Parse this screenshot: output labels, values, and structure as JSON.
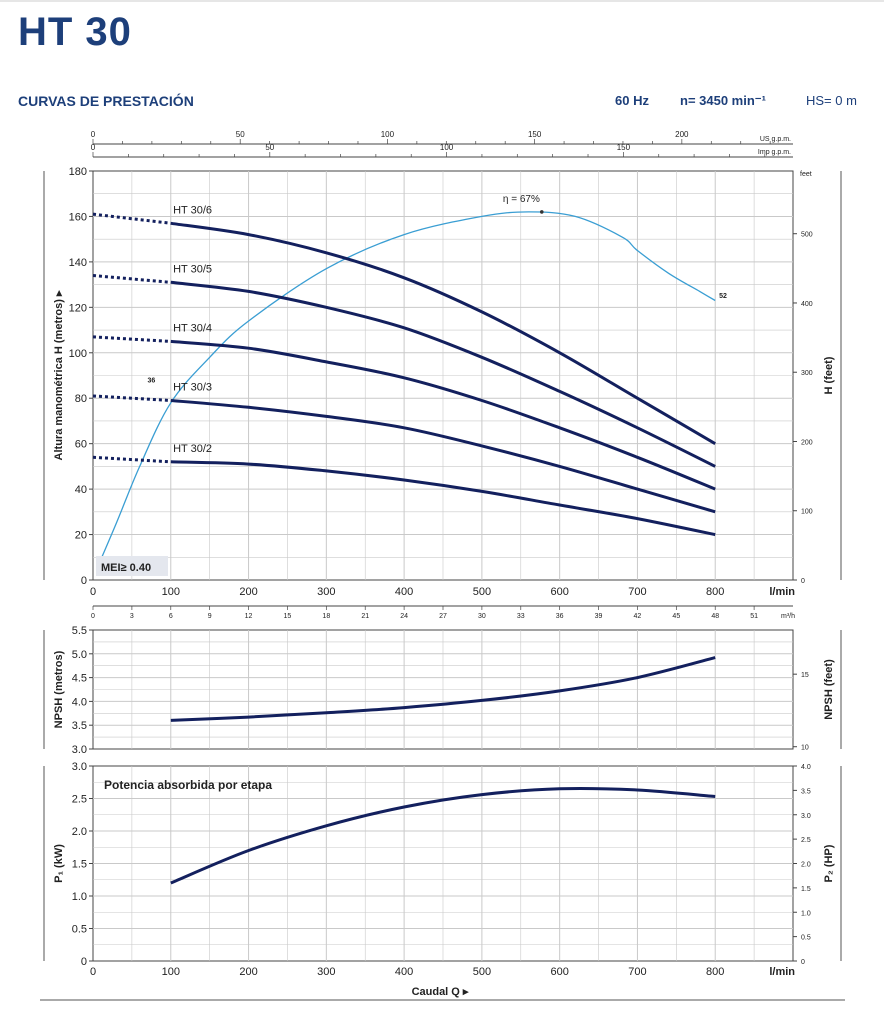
{
  "header": {
    "title": "HT 30",
    "subtitle": "CURVAS DE PRESTACIÓN",
    "frequency": "60 Hz",
    "speed": "n= 3450 min⁻¹",
    "hs": "HS= 0 m"
  },
  "chart_data": [
    {
      "type": "line",
      "name": "head",
      "ylabel": "Altura manométrica H (metros)",
      "ylabel_right": "H (feet)",
      "right_unit": "feet",
      "xlim": [
        0,
        900
      ],
      "ylim": [
        0,
        180
      ],
      "x_ticks": [
        0,
        100,
        200,
        300,
        400,
        500,
        600,
        700,
        800
      ],
      "x_unit": "l/min",
      "y_ticks": [
        0,
        20,
        40,
        60,
        80,
        100,
        120,
        140,
        160,
        180
      ],
      "y_right_ticks": [
        0,
        100,
        200,
        300,
        400,
        500
      ],
      "top_axes": [
        {
          "unit": "US g.p.m.",
          "ticks": [
            0,
            50,
            100,
            150,
            200
          ]
        },
        {
          "unit": "Imp g.p.m.",
          "ticks": [
            0,
            50,
            100,
            150
          ]
        }
      ],
      "bottom_axis": {
        "unit": "m³/h",
        "ticks": [
          0,
          3,
          6,
          9,
          12,
          15,
          18,
          21,
          24,
          27,
          30,
          33,
          36,
          39,
          42,
          45,
          48,
          51
        ]
      },
      "series": [
        {
          "name": "HT 30/6",
          "dashed_start": 161,
          "x": [
            100,
            200,
            300,
            400,
            500,
            600,
            700,
            800
          ],
          "y": [
            157,
            152,
            144,
            133,
            118,
            100,
            80,
            60
          ]
        },
        {
          "name": "HT 30/5",
          "dashed_start": 134,
          "x": [
            100,
            200,
            300,
            400,
            500,
            600,
            700,
            800
          ],
          "y": [
            131,
            127,
            120,
            111,
            98,
            83,
            67,
            50
          ]
        },
        {
          "name": "HT 30/4",
          "dashed_start": 107,
          "x": [
            100,
            200,
            300,
            400,
            500,
            600,
            700,
            800
          ],
          "y": [
            105,
            102,
            96,
            89,
            79,
            67,
            54,
            40
          ]
        },
        {
          "name": "HT 30/3",
          "dashed_start": 81,
          "x": [
            100,
            200,
            300,
            400,
            500,
            600,
            700,
            800
          ],
          "y": [
            79,
            76,
            72,
            67,
            59,
            50,
            40,
            30
          ]
        },
        {
          "name": "HT 30/2",
          "dashed_start": 54,
          "x": [
            100,
            200,
            300,
            400,
            500,
            600,
            700,
            800
          ],
          "y": [
            52,
            51,
            48,
            44,
            39,
            33,
            27,
            20
          ]
        }
      ],
      "efficiency": {
        "label": "η = 67%",
        "start_label": "36",
        "end_label": "52",
        "x": [
          5,
          30,
          60,
          100,
          150,
          200,
          300,
          400,
          500,
          560,
          620,
          680,
          700,
          740,
          780,
          800
        ],
        "y": [
          5,
          25,
          50,
          78,
          98,
          114,
          137,
          152,
          160,
          162,
          160,
          151,
          145,
          135,
          127,
          123
        ]
      },
      "annotation": "MEI≥ 0.40"
    },
    {
      "type": "line",
      "name": "npsh",
      "ylabel": "NPSH (metros)",
      "ylabel_right": "NPSH (feet)",
      "xlim": [
        0,
        900
      ],
      "ylim": [
        3.0,
        5.5
      ],
      "y_ticks": [
        "3.0",
        "3.5",
        "4.0",
        "4.5",
        "5.0",
        "5.5"
      ],
      "y_right_ticks": [
        10,
        15
      ],
      "series": [
        {
          "name": "",
          "x": [
            100,
            200,
            300,
            400,
            500,
            600,
            700,
            800
          ],
          "y": [
            3.6,
            3.67,
            3.76,
            3.87,
            4.02,
            4.22,
            4.5,
            4.92
          ]
        }
      ]
    },
    {
      "type": "line",
      "name": "power",
      "title": "Potencia absorbida por etapa",
      "ylabel": "P₁ (kW)",
      "ylabel_right": "P₂ (HP)",
      "xlabel": "Caudal Q",
      "x_unit": "l/min",
      "xlim": [
        0,
        900
      ],
      "ylim": [
        0,
        3.0
      ],
      "x_ticks": [
        0,
        100,
        200,
        300,
        400,
        500,
        600,
        700,
        800
      ],
      "y_ticks": [
        "0",
        "0.5",
        "1.0",
        "1.5",
        "2.0",
        "2.5",
        "3.0"
      ],
      "y_right_ticks": [
        "0",
        "0.5",
        "1.0",
        "1.5",
        "2.0",
        "2.5",
        "3.0",
        "3.5",
        "4.0"
      ],
      "series": [
        {
          "name": "",
          "x": [
            100,
            200,
            300,
            400,
            500,
            600,
            700,
            800
          ],
          "y": [
            1.2,
            1.7,
            2.08,
            2.37,
            2.56,
            2.65,
            2.63,
            2.53
          ]
        }
      ]
    }
  ]
}
